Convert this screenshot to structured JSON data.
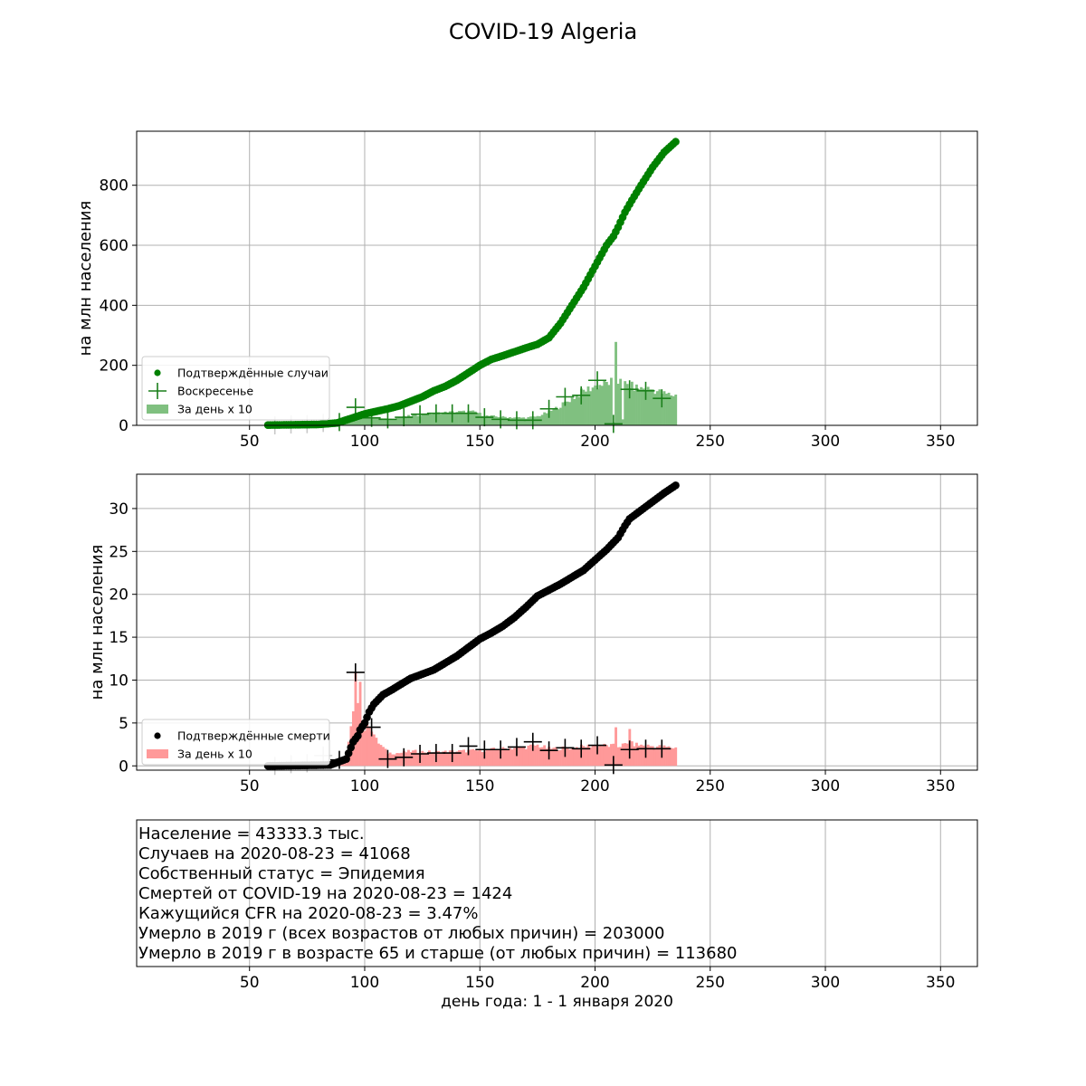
{
  "title": "COVID-19 Algeria",
  "colors": {
    "cases": "#008000",
    "cases_bars": "#80c080",
    "deaths": "#000000",
    "deaths_bars": "#ff9999",
    "sunday_cases": "#1a7f1a",
    "sunday_deaths": "#000000",
    "grid": "#b0b0b0"
  },
  "chart_data": [
    {
      "id": "cases",
      "type": "scatter",
      "ylabel": "на млн населения",
      "xlim": [
        1,
        366
      ],
      "ylim": [
        0,
        980
      ],
      "x_ticks": [
        50,
        100,
        150,
        200,
        250,
        300,
        350
      ],
      "y_ticks": [
        0,
        200,
        400,
        600,
        800
      ],
      "grid": true,
      "legend": {
        "placement": "bottom-left",
        "entries": [
          "Подтверждённые случаи",
          "Воскресенье",
          "За день x 10"
        ]
      },
      "cumulative_series": {
        "name": "Подтверждённые случаи",
        "anchors": [
          [
            58,
            1
          ],
          [
            70,
            2
          ],
          [
            80,
            3
          ],
          [
            88,
            8
          ],
          [
            92,
            18
          ],
          [
            96,
            28
          ],
          [
            100,
            38
          ],
          [
            104,
            45
          ],
          [
            110,
            55
          ],
          [
            115,
            65
          ],
          [
            120,
            80
          ],
          [
            125,
            95
          ],
          [
            130,
            115
          ],
          [
            135,
            130
          ],
          [
            140,
            150
          ],
          [
            145,
            175
          ],
          [
            150,
            200
          ],
          [
            155,
            220
          ],
          [
            160,
            232
          ],
          [
            165,
            245
          ],
          [
            170,
            258
          ],
          [
            175,
            270
          ],
          [
            180,
            292
          ],
          [
            185,
            340
          ],
          [
            190,
            400
          ],
          [
            195,
            460
          ],
          [
            200,
            530
          ],
          [
            205,
            600
          ],
          [
            208,
            630
          ],
          [
            210,
            660
          ],
          [
            213,
            710
          ],
          [
            216,
            750
          ],
          [
            220,
            800
          ],
          [
            225,
            860
          ],
          [
            230,
            910
          ],
          [
            235,
            945
          ]
        ]
      },
      "daily_bars": {
        "name": "За день x 10",
        "anchors": [
          [
            58,
            0
          ],
          [
            75,
            3
          ],
          [
            90,
            10
          ],
          [
            95,
            25
          ],
          [
            100,
            30
          ],
          [
            110,
            20
          ],
          [
            120,
            32
          ],
          [
            130,
            40
          ],
          [
            140,
            45
          ],
          [
            148,
            45
          ],
          [
            152,
            32
          ],
          [
            160,
            28
          ],
          [
            170,
            25
          ],
          [
            175,
            30
          ],
          [
            180,
            45
          ],
          [
            185,
            65
          ],
          [
            190,
            90
          ],
          [
            195,
            115
          ],
          [
            200,
            130
          ],
          [
            205,
            140
          ],
          [
            209,
            150
          ],
          [
            212,
            140
          ],
          [
            218,
            125
          ],
          [
            225,
            120
          ],
          [
            230,
            105
          ],
          [
            235,
            100
          ]
        ],
        "spikes": [
          [
            209,
            278
          ],
          [
            208,
            10
          ],
          [
            211,
            155
          ],
          [
            212,
            20
          ]
        ]
      },
      "sundays": {
        "name": "Воскресенье",
        "x": [
          61,
          68,
          75,
          82,
          89,
          96,
          103,
          110,
          117,
          124,
          131,
          138,
          145,
          152,
          159,
          166,
          173,
          180,
          187,
          194,
          201,
          208,
          215,
          222,
          229
        ],
        "y": [
          0,
          3,
          4,
          8,
          11,
          60,
          25,
          20,
          27,
          37,
          40,
          40,
          40,
          27,
          20,
          17,
          17,
          55,
          95,
          100,
          150,
          5,
          120,
          115,
          90
        ],
        "pre_epidemic_x": [
          61,
          68,
          75,
          82
        ]
      }
    },
    {
      "id": "deaths",
      "type": "scatter",
      "ylabel": "на млн населения",
      "xlim": [
        1,
        366
      ],
      "ylim": [
        -0.5,
        34
      ],
      "x_ticks": [
        50,
        100,
        150,
        200,
        250,
        300,
        350
      ],
      "y_ticks": [
        0,
        5,
        10,
        15,
        20,
        25,
        30
      ],
      "grid": true,
      "legend": {
        "placement": "bottom-left",
        "entries": [
          "Подтверждённые смерти",
          "За день x 10"
        ]
      },
      "cumulative_series": {
        "name": "Подтверждённые смерти",
        "anchors": [
          [
            58,
            0
          ],
          [
            85,
            0.1
          ],
          [
            88,
            0.4
          ],
          [
            92,
            0.8
          ],
          [
            95,
            2.8
          ],
          [
            97,
            3.5
          ],
          [
            98,
            4.2
          ],
          [
            100,
            5
          ],
          [
            102,
            6.3
          ],
          [
            104,
            7.2
          ],
          [
            108,
            8.3
          ],
          [
            112,
            8.9
          ],
          [
            115,
            9.4
          ],
          [
            120,
            10.2
          ],
          [
            125,
            10.7
          ],
          [
            130,
            11.2
          ],
          [
            135,
            12
          ],
          [
            140,
            12.8
          ],
          [
            145,
            13.8
          ],
          [
            150,
            14.8
          ],
          [
            155,
            15.5
          ],
          [
            160,
            16.3
          ],
          [
            165,
            17.3
          ],
          [
            170,
            18.5
          ],
          [
            175,
            19.8
          ],
          [
            180,
            20.5
          ],
          [
            185,
            21.2
          ],
          [
            190,
            22
          ],
          [
            195,
            22.8
          ],
          [
            200,
            24
          ],
          [
            205,
            25.2
          ],
          [
            210,
            26.6
          ],
          [
            213,
            28
          ],
          [
            215,
            28.8
          ],
          [
            220,
            29.8
          ],
          [
            225,
            30.8
          ],
          [
            230,
            31.8
          ],
          [
            235,
            32.7
          ]
        ]
      },
      "daily_bars": {
        "name": "За день x 10",
        "anchors": [
          [
            58,
            0
          ],
          [
            88,
            0
          ],
          [
            92,
            1
          ],
          [
            95,
            6
          ],
          [
            96,
            10
          ],
          [
            97,
            8
          ],
          [
            99,
            4
          ],
          [
            102,
            5
          ],
          [
            105,
            3
          ],
          [
            110,
            1.5
          ],
          [
            115,
            1.5
          ],
          [
            120,
            1.7
          ],
          [
            130,
            1.6
          ],
          [
            140,
            1.7
          ],
          [
            150,
            1.8
          ],
          [
            160,
            2
          ],
          [
            170,
            2.2
          ],
          [
            175,
            2.4
          ],
          [
            180,
            2
          ],
          [
            190,
            2.1
          ],
          [
            200,
            2.4
          ],
          [
            210,
            2.3
          ],
          [
            215,
            2.6
          ],
          [
            220,
            2.4
          ],
          [
            230,
            2.2
          ],
          [
            235,
            2.1
          ]
        ],
        "spikes": [
          [
            96,
            10.9
          ],
          [
            98,
            9.8
          ],
          [
            209,
            4.5
          ],
          [
            215,
            4.3
          ]
        ]
      },
      "sundays": {
        "name": "Воскресенье",
        "x": [
          61,
          68,
          75,
          82,
          89,
          96,
          103,
          110,
          117,
          124,
          131,
          138,
          145,
          152,
          159,
          166,
          173,
          180,
          187,
          194,
          201,
          208,
          215,
          222,
          229
        ],
        "y": [
          0,
          0.2,
          0.3,
          1.2,
          0.7,
          10.9,
          4.5,
          0.8,
          1,
          1.4,
          1.5,
          1.5,
          2.3,
          1.9,
          1.9,
          2.2,
          2.8,
          1.8,
          2.1,
          2,
          2.4,
          0.1,
          1.9,
          2,
          2
        ],
        "pre_epidemic_x": [
          61,
          68,
          75,
          82
        ]
      }
    }
  ],
  "info_panel": {
    "xlim": [
      1,
      366
    ],
    "x_ticks": [
      50,
      100,
      150,
      200,
      250,
      300,
      350
    ],
    "xlabel": "день года: 1 - 1 января 2020",
    "lines": [
      "Население = 43333.3 тыс.",
      "Случаев на 2020-08-23 = 41068",
      "Собственный статус = Эпидемия",
      "Смертей от COVID-19 на 2020-08-23 = 1424",
      "Кажущийся CFR на 2020-08-23 = 3.47%",
      "Умерло в 2019 г (всех возрастов от любых причин) = 203000",
      "Умерло в 2019 г в возрасте 65 и старше (от любых причин) = 113680"
    ]
  }
}
